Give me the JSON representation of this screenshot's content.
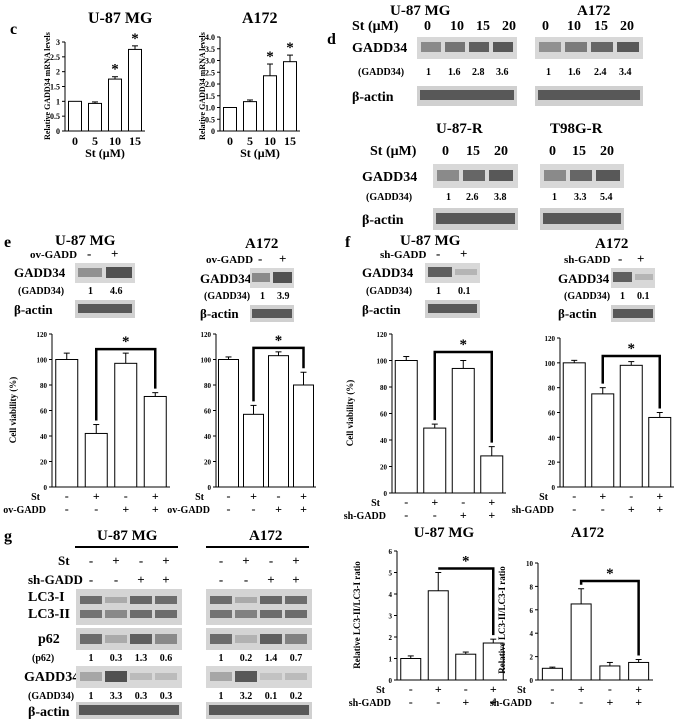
{
  "panels": {
    "c": "c",
    "d": "d",
    "e": "e",
    "f": "f",
    "g": "g"
  },
  "cells": {
    "u87": "U-87 MG",
    "a172": "A172",
    "u87r": "U-87-R",
    "t98gr": "T98G-R"
  },
  "labels": {
    "st_um": "St (μM)",
    "gadd34": "GADD34",
    "gadd34_paren": "(GADD34)",
    "bactin": "β-actin",
    "ov_gadd": "ov-GADD",
    "sh_gadd": "sh-GADD",
    "st": "St",
    "minus": "-",
    "plus": "+",
    "lc3i": "LC3-I",
    "lc3ii": "LC3-II",
    "p62": "p62",
    "p62_paren": "(p62)",
    "star": "*"
  },
  "d_blots": {
    "u87": {
      "doses": [
        "0",
        "10",
        "15",
        "20"
      ],
      "quant": [
        "1",
        "1.6",
        "2.8",
        "3.6"
      ]
    },
    "a172": {
      "doses": [
        "0",
        "10",
        "15",
        "20"
      ],
      "quant": [
        "1",
        "1.6",
        "2.4",
        "3.4"
      ]
    },
    "u87r": {
      "doses": [
        "0",
        "15",
        "20"
      ],
      "quant": [
        "1",
        "2.6",
        "3.8"
      ]
    },
    "t98gr": {
      "doses": [
        "0",
        "15",
        "20"
      ],
      "quant": [
        "1",
        "3.3",
        "5.4"
      ]
    }
  },
  "e_blots": {
    "u87_quant": [
      "1",
      "4.6"
    ],
    "a172_quant": [
      "1",
      "3.9"
    ]
  },
  "f_blots": {
    "u87_quant": [
      "1",
      "0.1"
    ],
    "a172_quant": [
      "1",
      "0.1"
    ]
  },
  "g_blots": {
    "p62_u87": [
      "1",
      "0.3",
      "1.3",
      "0.6"
    ],
    "p62_a172": [
      "1",
      "0.2",
      "1.4",
      "0.7"
    ],
    "gadd_u87": [
      "1",
      "3.3",
      "0.3",
      "0.3"
    ],
    "gadd_a172": [
      "1",
      "3.2",
      "0.1",
      "0.2"
    ]
  },
  "chart_data": [
    {
      "id": "c_u87",
      "type": "bar",
      "title": "U-87 MG",
      "ylabel": "Relative GADD34 mRNA levels",
      "xlabel": "St (μM)",
      "categories": [
        "0",
        "5",
        "10",
        "15"
      ],
      "values": [
        1.0,
        0.93,
        1.75,
        2.75
      ],
      "errors": [
        0.0,
        0.05,
        0.08,
        0.12
      ],
      "ylim": [
        0,
        3.0
      ],
      "yticks": [
        "0",
        "0.5",
        "1",
        "1.5",
        "2",
        "2.5",
        "3"
      ],
      "stars": [
        2,
        3
      ]
    },
    {
      "id": "c_a172",
      "type": "bar",
      "title": "A172",
      "ylabel": "Relative GADD34 mRNA levels",
      "xlabel": "St (μM)",
      "categories": [
        "0",
        "5",
        "10",
        "15"
      ],
      "values": [
        1.0,
        1.25,
        2.35,
        2.95
      ],
      "errors": [
        0.0,
        0.07,
        0.5,
        0.28
      ],
      "ylim": [
        0,
        4.0
      ],
      "yticks": [
        "0",
        "0.5",
        "1.0",
        "1.5",
        "2.0",
        "2.5",
        "3.0",
        "3.5",
        "4.0"
      ],
      "stars": [
        2,
        3
      ]
    },
    {
      "id": "e_u87",
      "type": "bar",
      "ylabel": "Cell viability (%)",
      "ylim": [
        0,
        120
      ],
      "yticks": [
        "0",
        "20",
        "40",
        "60",
        "80",
        "100",
        "120"
      ],
      "values": [
        100,
        42,
        97,
        71
      ],
      "errors": [
        5,
        7,
        8,
        3
      ],
      "st": [
        "-",
        "+",
        "-",
        "+"
      ],
      "gadd": [
        "-",
        "-",
        "+",
        "+"
      ],
      "bracket": [
        1,
        3
      ]
    },
    {
      "id": "e_a172",
      "type": "bar",
      "ylim": [
        0,
        120
      ],
      "yticks": [
        "0",
        "20",
        "40",
        "60",
        "80",
        "100",
        "120"
      ],
      "values": [
        100,
        57,
        103,
        80
      ],
      "errors": [
        2,
        7,
        3,
        10
      ],
      "st": [
        "-",
        "+",
        "-",
        "+"
      ],
      "gadd": [
        "-",
        "-",
        "+",
        "+"
      ],
      "bracket": [
        1,
        3
      ]
    },
    {
      "id": "f_u87",
      "type": "bar",
      "ylabel": "Cell viability (%)",
      "ylim": [
        0,
        120
      ],
      "yticks": [
        "0",
        "20",
        "40",
        "60",
        "80",
        "100",
        "120"
      ],
      "values": [
        100,
        49,
        94,
        28
      ],
      "errors": [
        3,
        3,
        6,
        7
      ],
      "st": [
        "-",
        "+",
        "-",
        "+"
      ],
      "gadd": [
        "-",
        "-",
        "+",
        "+"
      ],
      "bracket": [
        1,
        3
      ]
    },
    {
      "id": "f_a172",
      "type": "bar",
      "ylim": [
        0,
        120
      ],
      "yticks": [
        "0",
        "20",
        "40",
        "60",
        "80",
        "100",
        "120"
      ],
      "values": [
        100,
        75,
        98,
        56
      ],
      "errors": [
        2,
        5,
        3,
        4
      ],
      "st": [
        "-",
        "+",
        "-",
        "+"
      ],
      "gadd": [
        "-",
        "-",
        "+",
        "+"
      ],
      "bracket": [
        1,
        3
      ]
    },
    {
      "id": "g_u87",
      "type": "bar",
      "title": "U-87 MG",
      "ylabel": "Relative LC3-II/LC3-I ratio",
      "ylim": [
        0,
        6
      ],
      "yticks": [
        "0",
        "1",
        "2",
        "3",
        "4",
        "5",
        "6"
      ],
      "values": [
        1.0,
        4.15,
        1.2,
        1.72
      ],
      "errors": [
        0.12,
        0.85,
        0.1,
        0.18
      ],
      "st": [
        "-",
        "+",
        "-",
        "+"
      ],
      "gadd": [
        "-",
        "-",
        "+",
        "+"
      ],
      "bracket": [
        1,
        3
      ]
    },
    {
      "id": "g_a172",
      "type": "bar",
      "title": "A172",
      "ylabel": "Relative LC3-II/LC3-I ratio",
      "ylim": [
        0,
        10
      ],
      "yticks": [
        "0",
        "2",
        "4",
        "6",
        "8",
        "10"
      ],
      "values": [
        1.0,
        6.5,
        1.2,
        1.5
      ],
      "errors": [
        0.1,
        1.3,
        0.3,
        0.25
      ],
      "st": [
        "-",
        "+",
        "-",
        "+"
      ],
      "gadd": [
        "-",
        "-",
        "+",
        "+"
      ],
      "bracket": [
        1,
        3
      ]
    }
  ]
}
